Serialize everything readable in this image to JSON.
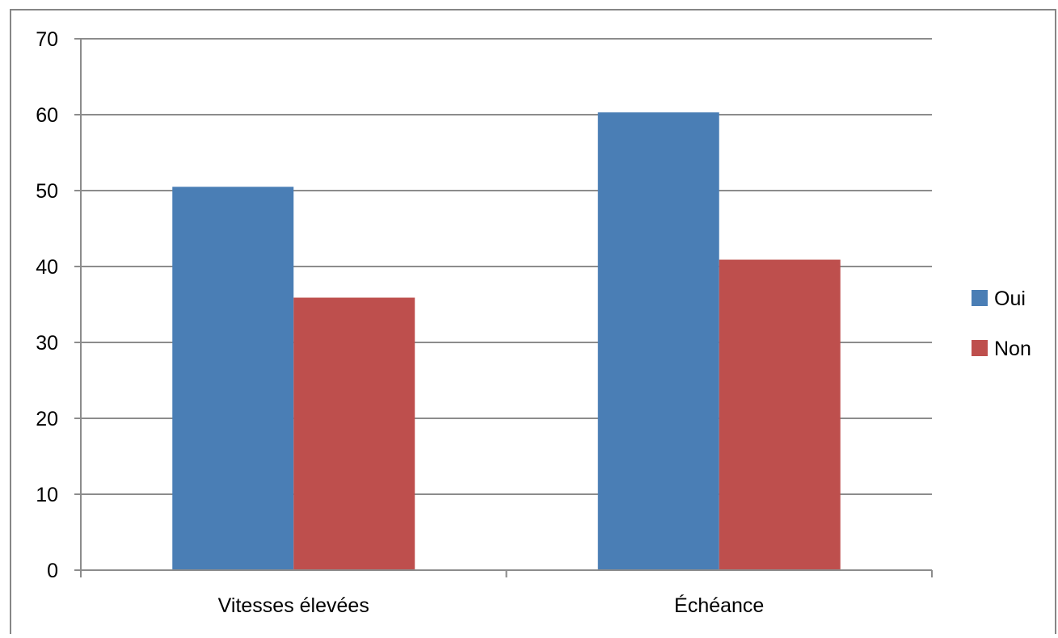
{
  "chart_data": {
    "type": "bar",
    "categories": [
      "Vitesses élevées",
      "Échéance"
    ],
    "series": [
      {
        "name": "Oui",
        "values": [
          50.5,
          60.3
        ],
        "color": "#4a7eb5"
      },
      {
        "name": "Non",
        "values": [
          35.9,
          40.9
        ],
        "color": "#be4f4d"
      }
    ],
    "ylim": [
      0,
      70
    ],
    "yticks": [
      0,
      10,
      20,
      30,
      40,
      50,
      60,
      70
    ],
    "grid": true,
    "legend": "right",
    "gridline_color": "#8c8c8c",
    "frame_color": "#868686"
  }
}
